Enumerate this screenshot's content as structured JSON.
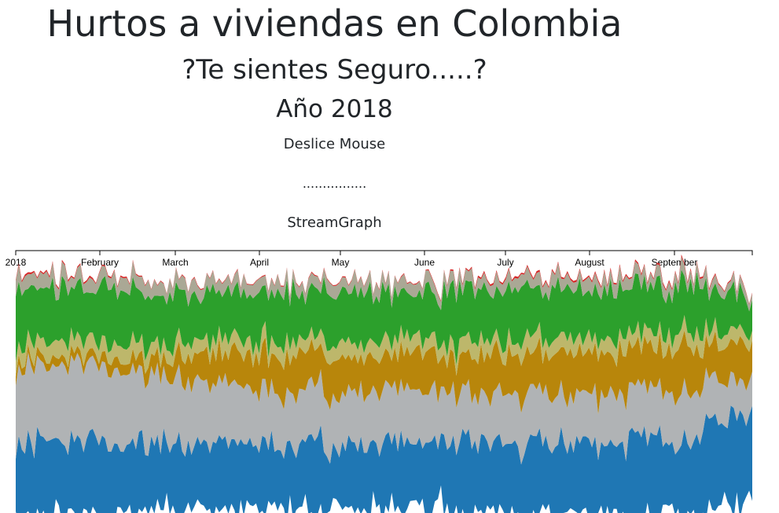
{
  "header": {
    "title": "Hurtos a viviendas en Colombia",
    "subtitle": "?Te sientes Seguro.....?",
    "year": "Año 2018",
    "hint": "Deslice Mouse",
    "dots": "................",
    "chart_label": "StreamGraph"
  },
  "chart_data": {
    "type": "area",
    "layout": "streamgraph",
    "x_axis": {
      "ticks": [
        "2018",
        "February",
        "March",
        "April",
        "May",
        "June",
        "July",
        "August",
        "September"
      ]
    },
    "series": [
      {
        "color": "#1f77b4",
        "profile": [
          45,
          44,
          42,
          40,
          40,
          40,
          41,
          42,
          43,
          45,
          50,
          56
        ]
      },
      {
        "color": "#b0b3b5",
        "profile": [
          48,
          47,
          42,
          37,
          33,
          33,
          32,
          30,
          31,
          31,
          30,
          20
        ]
      },
      {
        "color": "#b8860b",
        "profile": [
          5,
          5,
          10,
          18,
          22,
          22,
          22,
          24,
          25,
          26,
          27,
          22
        ]
      },
      {
        "color": "#bdb76b",
        "profile": [
          9,
          9,
          9,
          9,
          9,
          9,
          9,
          9,
          9,
          9,
          9,
          8
        ]
      },
      {
        "color": "#2ca02c",
        "profile": [
          33,
          32,
          31,
          30,
          30,
          29,
          30,
          31,
          31,
          30,
          29,
          20
        ]
      },
      {
        "color": "#aaa895",
        "profile": [
          8,
          8,
          8,
          7,
          7,
          7,
          7,
          7,
          7,
          7,
          7,
          5
        ]
      },
      {
        "color": "#d62728",
        "profile": [
          1,
          1,
          0.5,
          0.5,
          0.5,
          0.5,
          0.5,
          1,
          1,
          1,
          1,
          0.5
        ]
      }
    ]
  }
}
